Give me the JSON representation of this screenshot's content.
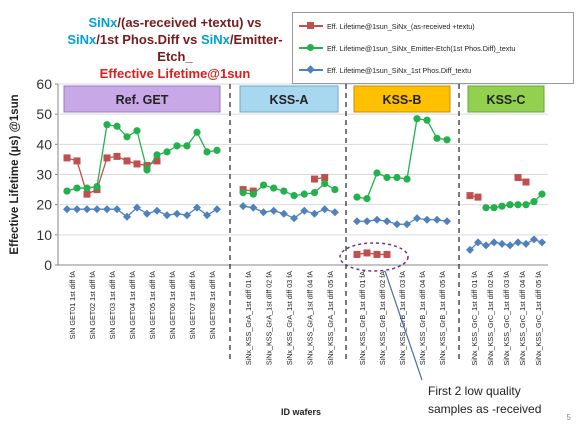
{
  "title": {
    "part1": "SiNx",
    "part2": "/(as-received +textu) vs",
    "part3": "SiNx",
    "part4": "/1st Phos.Diff vs ",
    "part5": "SiNx",
    "part6": "/Emitter-Etch_",
    "part7": "Effective Lifetime@1sun"
  },
  "page_number": "5",
  "colors": {
    "as_received": "#c0504d",
    "emitter_etch": "#22b14c",
    "phos_diff": "#4f81bd",
    "ref_box": "#c8a8e6",
    "kssa_box": "#a8d8f0",
    "kssb_box": "#ffc000",
    "kssc_box": "#92d050"
  },
  "annotation": {
    "line1": "First 2 low quality",
    "line2": "samples as -received"
  },
  "chart_data": {
    "type": "line",
    "ylabel": "Effective Lifetime (µs) @1sun",
    "xlabel": "ID wafers",
    "ylim": [
      0,
      60
    ],
    "yticks": [
      "0",
      "10",
      "20",
      "30",
      "40",
      "50",
      "60"
    ],
    "legend_position": "top-right",
    "groups": [
      {
        "label": "Ref. GET",
        "categories": [
          "SiN GET01 1st diff fA",
          "SiN GET02 1st diff fA",
          "SiN GET03 1st diff fA",
          "SiN GET04 1st diff fA",
          "SiN GET05 1st diff fA",
          "SiN GET06 1st diff fA",
          "SiN GET07 1st diff fA",
          "SiN GET08 1st diff fA"
        ],
        "as_received": [
          35.5,
          34.5,
          23.5,
          25.0,
          35.5,
          36.0,
          34.5,
          33.5,
          33.0,
          34.5,
          null,
          null,
          null,
          null,
          null,
          null
        ],
        "emitter_etch": [
          24.5,
          25.5,
          25.5,
          26.0,
          46.5,
          46.0,
          42.5,
          44.5,
          31.5,
          36.5,
          37.5,
          39.5,
          39.5,
          44.0,
          37.5,
          38.0
        ],
        "phos_diff": [
          18.5,
          18.5,
          18.5,
          18.5,
          18.5,
          18.5,
          16.0,
          19.0,
          17.0,
          18.0,
          16.5,
          17.0,
          16.5,
          19.0,
          16.5,
          18.5
        ]
      },
      {
        "label": "KSS-A",
        "categories": [
          "SiNx_KSS_GrA_1st diff 01 fA",
          "SiNx_KSS_GrA_1st diff 02 fA",
          "SiNx_KSS_GrA_1st diff 03 fA",
          "SiNx_KSS_GrA_1st diff 04 fA",
          "SiNx_KSS_GrA_1st diff 05 fA"
        ],
        "as_received": [
          25.0,
          24.5,
          null,
          null,
          null,
          null,
          null,
          28.5,
          29.0,
          null
        ],
        "emitter_etch": [
          24.0,
          23.5,
          26.5,
          25.5,
          24.5,
          23.0,
          23.5,
          24.0,
          27.0,
          25.0
        ],
        "phos_diff": [
          19.5,
          19.0,
          17.5,
          18.0,
          17.0,
          15.5,
          18.0,
          17.0,
          18.5,
          17.5
        ]
      },
      {
        "label": "KSS-B",
        "categories": [
          "SiNx_KSS_GrB_1st diff 01 fA",
          "SiNx_KSS_GrB_1st diff 02 fA",
          "SiNx_KSS_GrB_1st diff 03 fA",
          "SiNx_KSS_GrB_1st diff 04 fA",
          "SiNx_KSS_GrB_1st diff 05 fA"
        ],
        "as_received": [
          3.5,
          4.0,
          3.5,
          3.5,
          null,
          null,
          null,
          null,
          null,
          null
        ],
        "emitter_etch": [
          22.5,
          22.0,
          30.5,
          29.0,
          29.0,
          28.5,
          48.5,
          48.0,
          42.0,
          41.5
        ],
        "phos_diff": [
          14.5,
          14.5,
          15.0,
          14.5,
          13.5,
          13.5,
          15.5,
          15.0,
          15.0,
          14.5
        ]
      },
      {
        "label": "KSS-C",
        "categories": [
          "SiNx_KSS_GrC_1st diff 01 fA",
          "SiNx_KSS_GrC_1st diff 02 fA",
          "SiNx_KSS_GrC_1st diff 03 fA",
          "SiNx_KSS_GrC_1st diff 04 fA",
          "SiNx_KSS_GrC_1st diff 05 fA"
        ],
        "as_received": [
          23.0,
          22.5,
          null,
          null,
          null,
          null,
          29.0,
          27.5,
          null,
          null
        ],
        "emitter_etch": [
          null,
          null,
          19.0,
          19.0,
          19.5,
          20.0,
          20.0,
          20.0,
          21.0,
          23.5
        ],
        "phos_diff": [
          5.0,
          7.5,
          6.5,
          7.5,
          7.0,
          6.5,
          7.5,
          7.0,
          8.5,
          7.5
        ]
      }
    ],
    "series": [
      {
        "key": "as_received",
        "name": "Eff. Lifetime@1sun_SiNx_(as-received +textu)",
        "marker": "square"
      },
      {
        "key": "emitter_etch",
        "name": "Eff. Lifetime@1sun_SiNx_Emitter-Etch(1st Phos.Diff)_textu",
        "marker": "circle"
      },
      {
        "key": "phos_diff",
        "name": "Eff. Lifetime@1sun_SiNx_1st Phos.Diff_textu",
        "marker": "diamond"
      }
    ]
  }
}
